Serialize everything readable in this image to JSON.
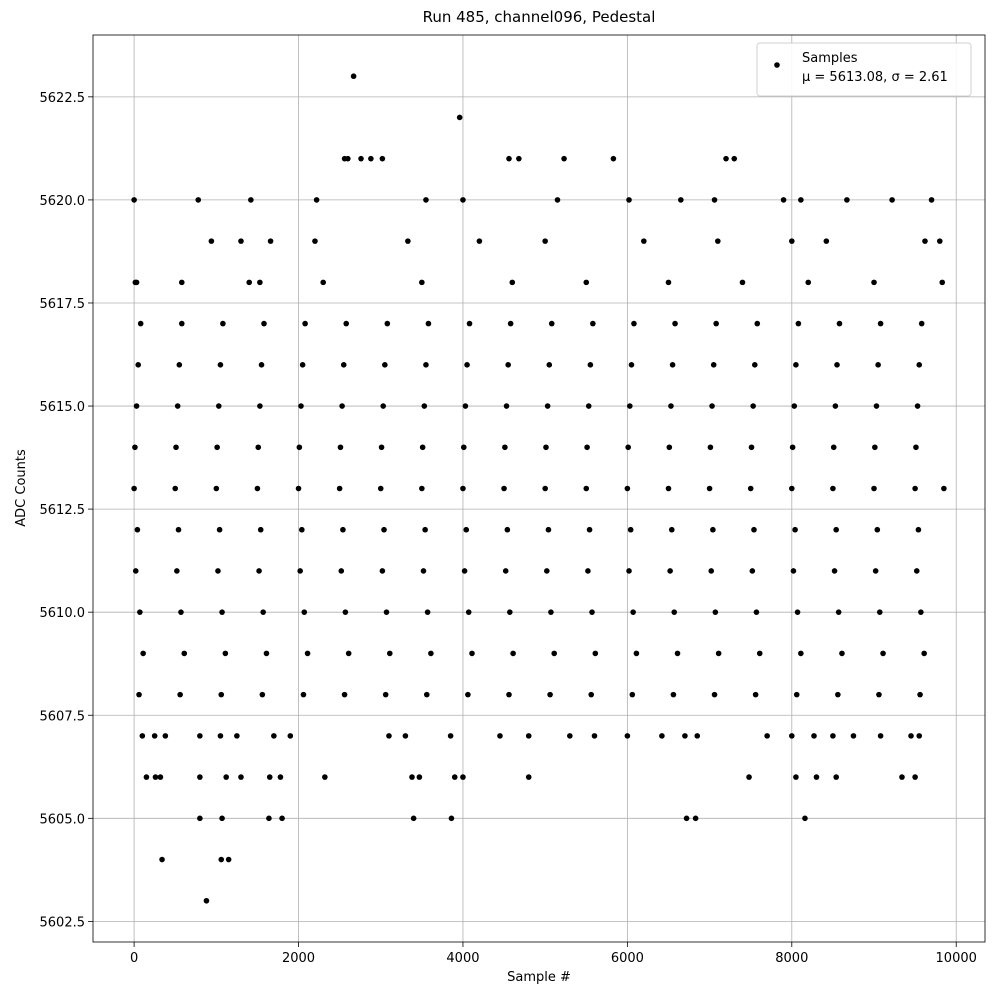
{
  "chart_data": {
    "type": "scatter",
    "title": "Run 485, channel096, Pedestal",
    "xlabel": "Sample #",
    "ylabel": "ADC Counts",
    "xlim": [
      -500,
      10350
    ],
    "ylim": [
      5602,
      5624
    ],
    "xticks": [
      0,
      2000,
      4000,
      6000,
      8000,
      10000
    ],
    "yticks": [
      5602.5,
      {
        "value": 5605,
        "label": "5605.0"
      },
      5607.5,
      {
        "value": 5610,
        "label": "5610.0"
      },
      5612.5,
      {
        "value": 5615,
        "label": "5615.0"
      },
      5617.5,
      {
        "value": 5620,
        "label": "5620.0"
      },
      5622.5
    ],
    "grid": true,
    "legend": "upper right",
    "legend_note": "μ = 5613.08, σ = 2.61",
    "series": [
      {
        "name": "Samples",
        "color": "#000000",
        "x": [
          60,
          560,
          1060,
          1560,
          2060,
          2560,
          3060,
          3560,
          4060,
          4560,
          5060,
          5560,
          6060,
          6560,
          7060,
          7560,
          8060,
          8560,
          9060,
          9560,
          110,
          610,
          1110,
          1610,
          2110,
          2610,
          3110,
          3610,
          4110,
          4610,
          5110,
          5610,
          6110,
          6610,
          7110,
          7610,
          8110,
          8610,
          9110,
          9610,
          70,
          570,
          1070,
          1570,
          2070,
          2570,
          3070,
          3570,
          4070,
          4570,
          5070,
          5570,
          6070,
          6570,
          7070,
          7570,
          8070,
          8570,
          9070,
          9570,
          20,
          520,
          1020,
          1520,
          2020,
          2520,
          3020,
          3520,
          4020,
          4520,
          5020,
          5520,
          6020,
          6520,
          7020,
          7520,
          8020,
          8520,
          9020,
          9520,
          40,
          540,
          1040,
          1540,
          2040,
          2540,
          3040,
          3540,
          4040,
          4540,
          5040,
          5540,
          6040,
          6540,
          7040,
          7540,
          8040,
          8540,
          9040,
          9540,
          0,
          500,
          1000,
          1500,
          2000,
          2500,
          3000,
          3500,
          4000,
          4500,
          5000,
          5500,
          6000,
          6500,
          7000,
          7500,
          8000,
          8500,
          9000,
          9500,
          9850,
          10,
          510,
          1010,
          1510,
          2010,
          2510,
          3010,
          3510,
          4010,
          4510,
          5010,
          5510,
          6010,
          6510,
          7010,
          7510,
          8010,
          8510,
          9010,
          9510,
          30,
          530,
          1030,
          1530,
          2030,
          2530,
          3030,
          3530,
          4030,
          4530,
          5030,
          5530,
          6030,
          6530,
          7030,
          7530,
          8030,
          8530,
          9030,
          9530,
          50,
          550,
          1050,
          1550,
          2050,
          2550,
          3050,
          3550,
          4050,
          4550,
          5050,
          5550,
          6050,
          6550,
          7050,
          7550,
          8050,
          8550,
          9050,
          9550,
          80,
          580,
          1080,
          1580,
          2080,
          2580,
          3080,
          3580,
          4080,
          4580,
          5080,
          5580,
          6080,
          6580,
          7080,
          7580,
          8080,
          8580,
          9080,
          9580,
          0,
          15,
          30,
          780,
          1420,
          2670,
          3960,
          2220,
          2560,
          2600,
          2760,
          2880,
          3020,
          4560,
          4680,
          5230,
          5830,
          7200,
          7300,
          8670,
          9220,
          9700,
          4000,
          3550,
          5150,
          6020,
          6650,
          7060,
          7900,
          8110,
          940,
          1300,
          1660,
          2200,
          3330,
          4200,
          5000,
          6200,
          7100,
          8000,
          8420,
          9620,
          9800,
          580,
          1400,
          1530,
          2300,
          3500,
          4600,
          5500,
          6500,
          7400,
          8200,
          9000,
          9830,
          340,
          880,
          800,
          1070,
          1060,
          1150,
          1640,
          1800,
          3400,
          3860,
          6720,
          6830,
          8160,
          150,
          260,
          320,
          800,
          1120,
          1300,
          1650,
          1780,
          2320,
          3380,
          3470,
          3900,
          4000,
          4800,
          7480,
          8050,
          8300,
          8540,
          9340,
          9500,
          100,
          250,
          380,
          800,
          1050,
          1250,
          1700,
          1900,
          3100,
          3300,
          3850,
          4450,
          4800,
          5300,
          5600,
          6000,
          6420,
          6700,
          6850,
          7700,
          8000,
          8270,
          8500,
          8750,
          9080,
          9450,
          9550
        ],
        "values": [
          5608,
          5608,
          5608,
          5608,
          5608,
          5608,
          5608,
          5608,
          5608,
          5608,
          5608,
          5608,
          5608,
          5608,
          5608,
          5608,
          5608,
          5608,
          5608,
          5608,
          5609,
          5609,
          5609,
          5609,
          5609,
          5609,
          5609,
          5609,
          5609,
          5609,
          5609,
          5609,
          5609,
          5609,
          5609,
          5609,
          5609,
          5609,
          5609,
          5609,
          5610,
          5610,
          5610,
          5610,
          5610,
          5610,
          5610,
          5610,
          5610,
          5610,
          5610,
          5610,
          5610,
          5610,
          5610,
          5610,
          5610,
          5610,
          5610,
          5610,
          5611,
          5611,
          5611,
          5611,
          5611,
          5611,
          5611,
          5611,
          5611,
          5611,
          5611,
          5611,
          5611,
          5611,
          5611,
          5611,
          5611,
          5611,
          5611,
          5611,
          5612,
          5612,
          5612,
          5612,
          5612,
          5612,
          5612,
          5612,
          5612,
          5612,
          5612,
          5612,
          5612,
          5612,
          5612,
          5612,
          5612,
          5612,
          5612,
          5612,
          5613,
          5613,
          5613,
          5613,
          5613,
          5613,
          5613,
          5613,
          5613,
          5613,
          5613,
          5613,
          5613,
          5613,
          5613,
          5613,
          5613,
          5613,
          5613,
          5613,
          5613,
          5614,
          5614,
          5614,
          5614,
          5614,
          5614,
          5614,
          5614,
          5614,
          5614,
          5614,
          5614,
          5614,
          5614,
          5614,
          5614,
          5614,
          5614,
          5614,
          5614,
          5615,
          5615,
          5615,
          5615,
          5615,
          5615,
          5615,
          5615,
          5615,
          5615,
          5615,
          5615,
          5615,
          5615,
          5615,
          5615,
          5615,
          5615,
          5615,
          5615,
          5616,
          5616,
          5616,
          5616,
          5616,
          5616,
          5616,
          5616,
          5616,
          5616,
          5616,
          5616,
          5616,
          5616,
          5616,
          5616,
          5616,
          5616,
          5616,
          5616,
          5617,
          5617,
          5617,
          5617,
          5617,
          5617,
          5617,
          5617,
          5617,
          5617,
          5617,
          5617,
          5617,
          5617,
          5617,
          5617,
          5617,
          5617,
          5617,
          5617,
          5620,
          5618,
          5618,
          5620,
          5620,
          5623,
          5622,
          5620,
          5621,
          5621,
          5621,
          5621,
          5621,
          5621,
          5621,
          5621,
          5621,
          5621,
          5621,
          5620,
          5620,
          5620,
          5620,
          5620,
          5620,
          5620,
          5620,
          5620,
          5620,
          5620,
          5619,
          5619,
          5619,
          5619,
          5619,
          5619,
          5619,
          5619,
          5619,
          5619,
          5619,
          5619,
          5619,
          5618,
          5618,
          5618,
          5618,
          5618,
          5618,
          5618,
          5618,
          5618,
          5618,
          5618,
          5618,
          5604,
          5603,
          5605,
          5605,
          5604,
          5604,
          5605,
          5605,
          5605,
          5605,
          5605,
          5605,
          5605,
          5606,
          5606,
          5606,
          5606,
          5606,
          5606,
          5606,
          5606,
          5606,
          5606,
          5606,
          5606,
          5606,
          5606,
          5606,
          5606,
          5606,
          5606,
          5606,
          5606,
          5607,
          5607,
          5607,
          5607,
          5607,
          5607,
          5607,
          5607,
          5607,
          5607,
          5607,
          5607,
          5607,
          5607,
          5607,
          5607,
          5607,
          5607,
          5607,
          5607,
          5607,
          5607,
          5607,
          5607,
          5607,
          5607,
          5607
        ]
      }
    ]
  }
}
